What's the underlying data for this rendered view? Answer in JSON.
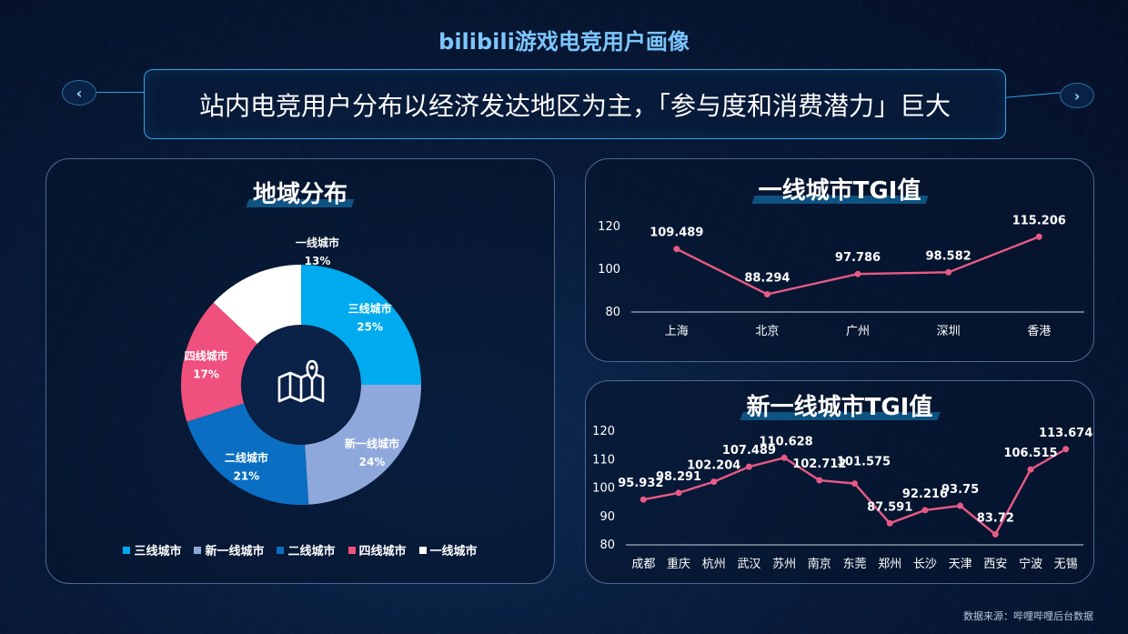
{
  "page": {
    "title": "bilibili游戏电竞用户画像",
    "subtitle": "站内电竞用户分布以经济发达地区为主，「参与度和消费潜力」巨大",
    "prev_icon": "chevron-left-icon",
    "next_icon": "chevron-right-icon",
    "source": "数据来源：哔哩哔哩后台数据"
  },
  "panels": {
    "region_title": "地域分布",
    "tier1_title": "一线城市TGI值",
    "newtier1_title": "新一线城市TGI值",
    "center_icon": "map-pin-icon"
  },
  "colors": {
    "tier3": "#00aaee",
    "newtier1": "#8fa8dc",
    "tier2": "#0a6fc2",
    "tier4": "#f0507e",
    "tier1": "#ffffff",
    "line": "#e85a86"
  },
  "chart_data": [
    {
      "type": "pie",
      "title": "地域分布",
      "categories": [
        "三线城市",
        "新一线城市",
        "二线城市",
        "四线城市",
        "一线城市"
      ],
      "values": [
        25,
        24,
        21,
        17,
        13
      ],
      "labels": [
        "25%",
        "24%",
        "21%",
        "17%",
        "13%"
      ],
      "legend": [
        "三线城市",
        "新一线城市",
        "二线城市",
        "四线城市",
        "一线城市"
      ],
      "legend_position": "bottom"
    },
    {
      "type": "line",
      "title": "一线城市TGI值",
      "categories": [
        "上海",
        "北京",
        "广州",
        "深圳",
        "香港"
      ],
      "values": [
        109.489,
        88.294,
        97.786,
        98.582,
        115.206
      ],
      "labels": [
        "109.489",
        "88.294",
        "97.786",
        "98.582",
        "115.206"
      ],
      "ylim": [
        80,
        120
      ],
      "yticks": [
        "80",
        "100",
        "120"
      ],
      "grid": false
    },
    {
      "type": "line",
      "title": "新一线城市TGI值",
      "categories": [
        "成都",
        "重庆",
        "杭州",
        "武汉",
        "苏州",
        "南京",
        "东莞",
        "郑州",
        "长沙",
        "天津",
        "西安",
        "宁波",
        "无锡"
      ],
      "values": [
        95.932,
        98.291,
        102.204,
        107.489,
        110.628,
        102.712,
        101.575,
        87.591,
        92.216,
        93.75,
        83.72,
        106.515,
        113.674
      ],
      "labels": [
        "95.932",
        "98.291",
        "102.204",
        "107.489",
        "110.628",
        "102.712",
        "101.575",
        "87.591",
        "92.216",
        "93.75",
        "83.72",
        "106.515",
        "113.674"
      ],
      "ylim": [
        80,
        120
      ],
      "yticks": [
        "80",
        "90",
        "100",
        "110",
        "120"
      ],
      "grid": false
    }
  ]
}
